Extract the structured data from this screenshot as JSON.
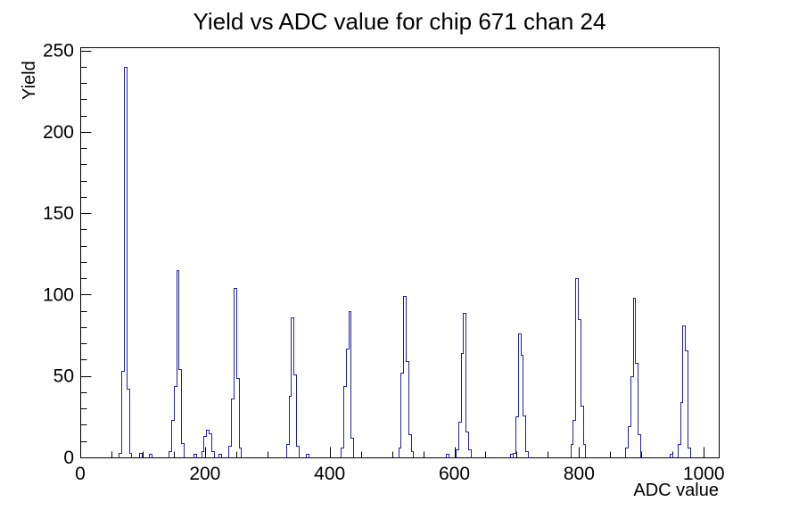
{
  "chart_data": {
    "type": "bar",
    "title": "Yield vs ADC value for chip 671 chan 24",
    "xlabel": "ADC value",
    "ylabel": "Yield",
    "xlim": [
      0,
      1024
    ],
    "ylim": [
      0,
      252
    ],
    "x_major_ticks": [
      0,
      200,
      400,
      600,
      800,
      1000
    ],
    "x_minor_step": 50,
    "y_major_ticks": [
      0,
      50,
      100,
      150,
      200,
      250
    ],
    "y_minor_step": 10,
    "grid": false,
    "legend_position": "none",
    "background_color": "#ffffff",
    "frame_color": "#000000",
    "line_color": "#2121a3",
    "bin_width": 4,
    "clusters": [
      [
        [
          64,
          3
        ],
        [
          68,
          53
        ],
        [
          72,
          240
        ],
        [
          76,
          42
        ],
        [
          80,
          3
        ]
      ],
      [
        [
          96,
          3
        ]
      ],
      [
        [
          112,
          2
        ]
      ],
      [
        [
          144,
          4
        ],
        [
          148,
          23
        ],
        [
          152,
          44
        ],
        [
          156,
          115
        ],
        [
          160,
          54
        ],
        [
          164,
          9
        ]
      ],
      [
        [
          184,
          2
        ]
      ],
      [
        [
          196,
          4
        ],
        [
          200,
          13
        ],
        [
          204,
          17
        ],
        [
          208,
          15
        ],
        [
          212,
          4
        ]
      ],
      [
        [
          224,
          2
        ]
      ],
      [
        [
          240,
          7
        ],
        [
          244,
          36
        ],
        [
          248,
          104
        ],
        [
          252,
          49
        ],
        [
          256,
          6
        ]
      ],
      [
        [
          332,
          8
        ],
        [
          336,
          38
        ],
        [
          340,
          86
        ],
        [
          344,
          51
        ],
        [
          348,
          7
        ]
      ],
      [
        [
          364,
          2
        ]
      ],
      [
        [
          420,
          6
        ],
        [
          424,
          44
        ],
        [
          428,
          67
        ],
        [
          432,
          90
        ],
        [
          436,
          12
        ]
      ],
      [
        [
          512,
          6
        ],
        [
          516,
          52
        ],
        [
          520,
          99
        ],
        [
          524,
          59
        ],
        [
          528,
          14
        ],
        [
          532,
          4
        ]
      ],
      [
        [
          588,
          2
        ]
      ],
      [
        [
          604,
          5
        ],
        [
          608,
          22
        ],
        [
          612,
          64
        ],
        [
          616,
          89
        ],
        [
          620,
          16
        ],
        [
          624,
          5
        ]
      ],
      [
        [
          692,
          2
        ]
      ],
      [
        [
          696,
          3
        ],
        [
          700,
          25
        ],
        [
          704,
          76
        ],
        [
          708,
          63
        ],
        [
          712,
          26
        ],
        [
          716,
          4
        ]
      ],
      [
        [
          788,
          8
        ],
        [
          792,
          23
        ],
        [
          796,
          110
        ],
        [
          800,
          85
        ],
        [
          804,
          32
        ],
        [
          808,
          8
        ]
      ],
      [
        [
          876,
          6
        ],
        [
          880,
          19
        ],
        [
          884,
          50
        ],
        [
          888,
          98
        ],
        [
          892,
          58
        ],
        [
          896,
          14
        ]
      ],
      [
        [
          948,
          2
        ]
      ],
      [
        [
          960,
          8
        ],
        [
          964,
          34
        ],
        [
          968,
          81
        ],
        [
          972,
          66
        ],
        [
          976,
          6
        ]
      ]
    ]
  }
}
